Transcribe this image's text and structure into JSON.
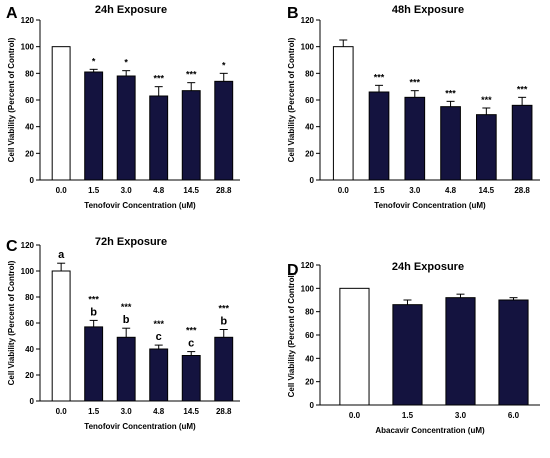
{
  "chart_data": [
    {
      "type": "bar",
      "panel_label": "A",
      "title": "24h Exposure",
      "xlabel": "Tenofovir Concentration (uM)",
      "ylabel": "Cell Viability (Percent of Control)",
      "ylim": [
        0,
        120
      ],
      "yticks": [
        "0",
        "20",
        "40",
        "60",
        "80",
        "100",
        "120"
      ],
      "categories": [
        "0.0",
        "1.5",
        "3.0",
        "4.8",
        "14.5",
        "28.8"
      ],
      "values": [
        100,
        81,
        78,
        63,
        67,
        74
      ],
      "errors": [
        0,
        2,
        4,
        7,
        6,
        6
      ],
      "significance": [
        "",
        "*",
        "*",
        "***",
        "***",
        "*"
      ],
      "group_letters": [
        "",
        "",
        "",
        "",
        "",
        ""
      ],
      "colors": [
        "#ffffff",
        "#14133f",
        "#14133f",
        "#14133f",
        "#14133f",
        "#14133f"
      ]
    },
    {
      "type": "bar",
      "panel_label": "B",
      "title": "48h Exposure",
      "xlabel": "Tenofovir Concentration (uM)",
      "ylabel": "Cell Viability (Percent of Control)",
      "ylim": [
        0,
        120
      ],
      "yticks": [
        "0",
        "20",
        "40",
        "60",
        "80",
        "100",
        "120"
      ],
      "categories": [
        "0.0",
        "1.5",
        "3.0",
        "4.8",
        "14.5",
        "28.8"
      ],
      "values": [
        100,
        66,
        62,
        55,
        49,
        56
      ],
      "errors": [
        5,
        5,
        5,
        4,
        5,
        6
      ],
      "significance": [
        "",
        "***",
        "***",
        "***",
        "***",
        "***"
      ],
      "group_letters": [
        "",
        "",
        "",
        "",
        "",
        ""
      ],
      "colors": [
        "#ffffff",
        "#14133f",
        "#14133f",
        "#14133f",
        "#14133f",
        "#14133f"
      ]
    },
    {
      "type": "bar",
      "panel_label": "C",
      "title": "72h Exposure",
      "xlabel": "Tenofovir Concentration (uM)",
      "ylabel": "Cell Viability (Percent of Control)",
      "ylim": [
        0,
        120
      ],
      "yticks": [
        "0",
        "20",
        "40",
        "60",
        "80",
        "100",
        "120"
      ],
      "categories": [
        "0.0",
        "1.5",
        "3.0",
        "4.8",
        "14.5",
        "28.8"
      ],
      "values": [
        100,
        57,
        49,
        40,
        35,
        49
      ],
      "errors": [
        6,
        5,
        7,
        3,
        3,
        6
      ],
      "significance": [
        "",
        "***",
        "***",
        "***",
        "***",
        "***"
      ],
      "group_letters": [
        "a",
        "b",
        "b",
        "c",
        "c",
        "b"
      ],
      "colors": [
        "#ffffff",
        "#14133f",
        "#14133f",
        "#14133f",
        "#14133f",
        "#14133f"
      ]
    },
    {
      "type": "bar",
      "panel_label": "D",
      "title": "24h Exposure",
      "xlabel": "Abacavir Concentration (uM)",
      "ylabel": "Cell Viability (Percent of Control)",
      "ylim": [
        0,
        120
      ],
      "yticks": [
        "0",
        "20",
        "40",
        "60",
        "80",
        "100",
        "120"
      ],
      "categories": [
        "0.0",
        "1.5",
        "3.0",
        "6.0"
      ],
      "values": [
        100,
        86,
        92,
        90
      ],
      "errors": [
        0,
        4,
        3,
        2
      ],
      "significance": [
        "",
        "",
        "",
        ""
      ],
      "group_letters": [
        "",
        "",
        "",
        ""
      ],
      "colors": [
        "#ffffff",
        "#14133f",
        "#14133f",
        "#14133f"
      ]
    }
  ]
}
